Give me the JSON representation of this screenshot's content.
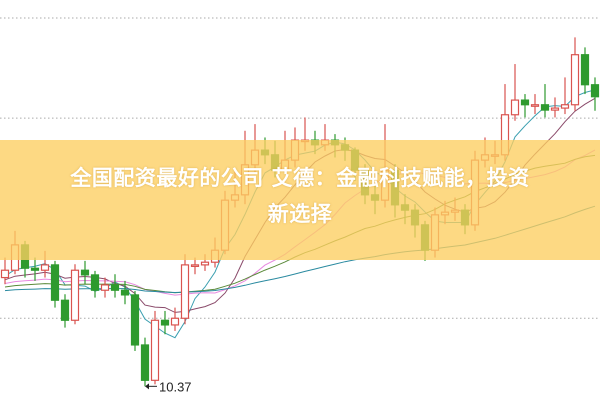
{
  "headline": {
    "line1": "全国配资最好的公司 艾德：金融科技赋能，投资",
    "line2": "新选择"
  },
  "chart_data": {
    "type": "candlestick",
    "title": "",
    "ylim": [
      10.15,
      16.16
    ],
    "gridlines": [
      15.89,
      14.39,
      11.39
    ],
    "grid": "horizontal-dotted",
    "annotation": {
      "label": "10.37",
      "value": 10.37,
      "candle_index": 14
    },
    "colors": {
      "up": "#d9534f",
      "down": "#2e9a2e",
      "ma": [
        "#3a9fb0",
        "#8a4a6a",
        "#e88ae0",
        "#5a8a3a",
        "#2a8aa0"
      ],
      "banner": "#fcce60"
    },
    "moving_average_periods": [
      5,
      10,
      20,
      30,
      60
    ],
    "candles": [
      [
        12.0,
        12.11,
        12.3,
        11.9
      ],
      [
        12.11,
        12.49,
        12.7,
        12.05
      ],
      [
        12.49,
        12.14,
        12.55,
        12.0
      ],
      [
        12.14,
        12.11,
        12.3,
        11.95
      ],
      [
        12.11,
        12.19,
        12.4,
        12.0
      ],
      [
        12.19,
        11.66,
        12.25,
        11.55
      ],
      [
        11.66,
        11.36,
        11.75,
        11.25
      ],
      [
        11.36,
        12.11,
        12.2,
        11.3
      ],
      [
        12.11,
        12.04,
        12.25,
        11.9
      ],
      [
        12.04,
        11.81,
        12.1,
        11.7
      ],
      [
        11.81,
        11.89,
        12.0,
        11.7
      ],
      [
        11.89,
        11.81,
        12.05,
        11.7
      ],
      [
        11.81,
        11.74,
        11.95,
        11.6
      ],
      [
        11.74,
        10.99,
        11.8,
        10.9
      ],
      [
        10.99,
        10.46,
        11.1,
        10.37
      ],
      [
        10.46,
        11.36,
        11.5,
        10.4
      ],
      [
        11.36,
        11.29,
        11.5,
        11.15
      ],
      [
        11.29,
        11.39,
        11.55,
        11.2
      ],
      [
        11.39,
        12.19,
        12.35,
        11.3
      ],
      [
        12.19,
        12.19,
        12.3,
        12.05
      ],
      [
        12.19,
        12.23,
        12.35,
        12.1
      ],
      [
        12.23,
        12.41,
        12.6,
        12.15
      ],
      [
        12.41,
        13.16,
        13.3,
        12.35
      ],
      [
        13.16,
        13.24,
        13.6,
        13.05
      ],
      [
        13.24,
        13.69,
        14.2,
        13.1
      ],
      [
        13.69,
        13.91,
        14.3,
        13.55
      ],
      [
        13.91,
        13.84,
        14.1,
        13.7
      ],
      [
        13.84,
        13.61,
        14.05,
        13.5
      ],
      [
        13.61,
        13.76,
        14.2,
        13.55
      ],
      [
        13.76,
        14.06,
        14.25,
        13.65
      ],
      [
        14.06,
        14.06,
        14.4,
        13.9
      ],
      [
        14.06,
        13.99,
        14.2,
        13.85
      ],
      [
        13.99,
        14.06,
        14.3,
        13.9
      ],
      [
        14.06,
        13.99,
        14.15,
        13.8
      ],
      [
        13.99,
        13.91,
        14.1,
        13.75
      ],
      [
        13.91,
        13.61,
        13.95,
        13.45
      ],
      [
        13.61,
        13.24,
        13.7,
        13.1
      ],
      [
        13.24,
        13.16,
        13.4,
        12.95
      ],
      [
        13.16,
        13.61,
        14.3,
        13.05
      ],
      [
        13.61,
        13.09,
        13.7,
        12.9
      ],
      [
        13.09,
        13.01,
        13.25,
        12.8
      ],
      [
        13.01,
        12.79,
        13.1,
        12.6
      ],
      [
        12.79,
        12.41,
        12.85,
        12.25
      ],
      [
        12.41,
        12.94,
        13.05,
        12.3
      ],
      [
        12.94,
        12.98,
        13.15,
        12.8
      ],
      [
        12.98,
        13.01,
        13.2,
        12.85
      ],
      [
        13.01,
        12.79,
        13.1,
        12.65
      ],
      [
        12.79,
        13.76,
        13.9,
        12.7
      ],
      [
        13.76,
        13.84,
        14.1,
        13.65
      ],
      [
        13.84,
        13.84,
        14.05,
        13.7
      ],
      [
        13.84,
        14.44,
        14.9,
        13.75
      ],
      [
        14.44,
        14.66,
        15.2,
        14.35
      ],
      [
        14.66,
        14.59,
        14.75,
        14.4
      ],
      [
        14.59,
        14.59,
        14.75,
        14.45
      ],
      [
        14.59,
        14.51,
        14.9,
        14.4
      ],
      [
        14.51,
        14.54,
        14.7,
        14.4
      ],
      [
        14.54,
        14.59,
        15.0,
        14.45
      ],
      [
        14.59,
        15.34,
        15.6,
        14.5
      ],
      [
        15.34,
        14.89,
        15.45,
        14.75
      ],
      [
        14.89,
        14.71,
        15.0,
        14.5
      ]
    ]
  }
}
